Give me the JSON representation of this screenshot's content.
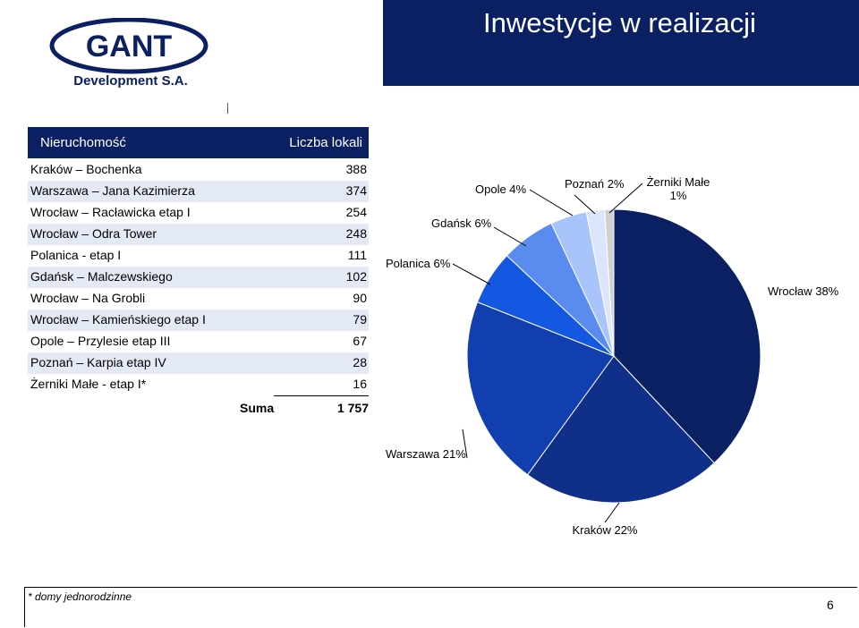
{
  "header": {
    "title": "Inwestycje w realizacji"
  },
  "logo": {
    "name": "GANT",
    "subtitle": "Development S.A."
  },
  "table": {
    "col_property": "Nieruchomość",
    "col_units": "Liczba lokali",
    "rows": [
      {
        "name": "Kraków – Bochenka",
        "value": "388"
      },
      {
        "name": "Warszawa – Jana Kazimierza",
        "value": "374"
      },
      {
        "name": "Wrocław – Racławicka etap I",
        "value": "254"
      },
      {
        "name": "Wrocław – Odra Tower",
        "value": "248"
      },
      {
        "name": "Polanica - etap I",
        "value": "111"
      },
      {
        "name": "Gdańsk – Malczewskiego",
        "value": "102"
      },
      {
        "name": "Wrocław – Na Grobli",
        "value": "90"
      },
      {
        "name": "Wrocław – Kamieńskiego etap I",
        "value": "79"
      },
      {
        "name": "Opole – Przylesie etap III",
        "value": "67"
      },
      {
        "name": "Poznań – Karpia etap IV",
        "value": "28"
      },
      {
        "name": "Żerniki Małe - etap I*",
        "value": "16"
      }
    ],
    "sum_label": "Suma",
    "sum_value": "1 757"
  },
  "chart_data": {
    "type": "pie",
    "slices": [
      {
        "label": "Wrocław 38%",
        "value": 38,
        "color": "#0b2063"
      },
      {
        "label": "Kraków 22%",
        "value": 22,
        "color": "#0f2f88"
      },
      {
        "label": "Warszawa 21%",
        "value": 21,
        "color": "#123fb0"
      },
      {
        "label": "Polanica 6%",
        "value": 6,
        "color": "#1457e0"
      },
      {
        "label": "Gdańsk 6%",
        "value": 6,
        "color": "#5a8cf0"
      },
      {
        "label": "Opole 4%",
        "value": 4,
        "color": "#a9c4fa"
      },
      {
        "label": "Poznań 2%",
        "value": 2,
        "color": "#dbe6fd"
      },
      {
        "label": "Żerniki Małe",
        "label2": "1%",
        "value": 1,
        "color": "#d0d0d0"
      }
    ]
  },
  "footnote": "* domy jednorodzinne",
  "page_number": "6"
}
